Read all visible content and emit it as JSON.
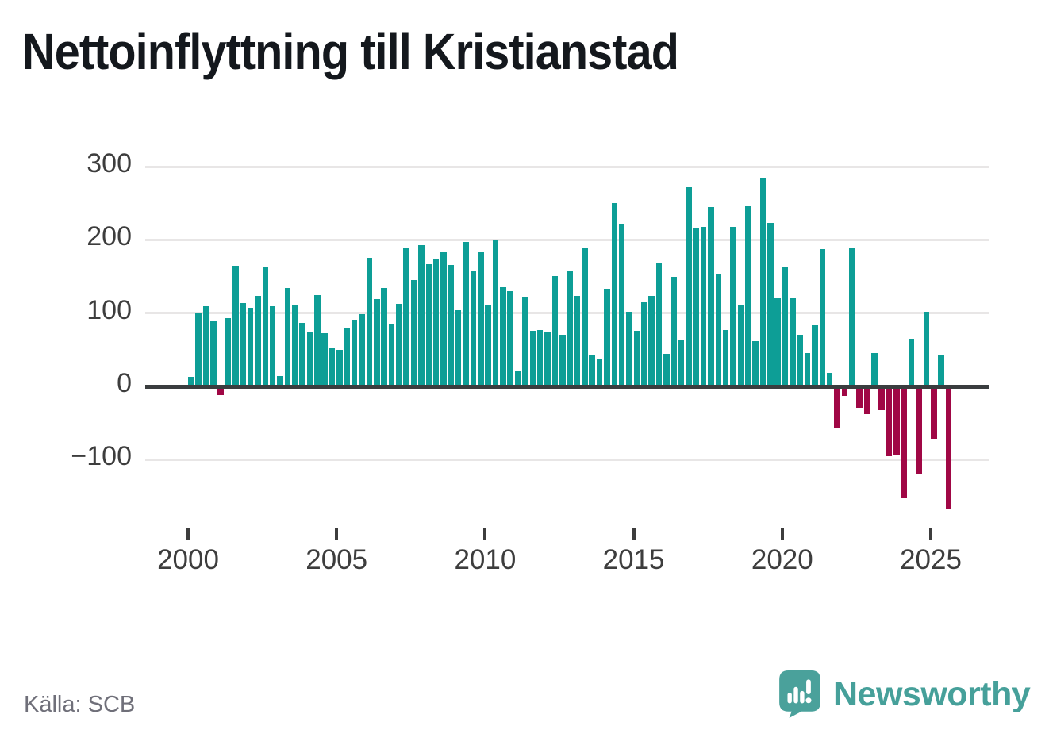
{
  "title": "Nettoinflyttning till Kristianstad",
  "source": {
    "text": "Källa: SCB"
  },
  "branding": {
    "logo_text": "Newsworthy",
    "logo_icon": "bar-chart-speech-bubble-icon",
    "logo_color": "#46a09a"
  },
  "colors": {
    "positive_bar": "#0d9e96",
    "negative_bar": "#a00745",
    "gridline": "#e8e6e6",
    "axis_line": "#3a3d3f",
    "axis_label": "#3d3d3d",
    "title_text": "#14181d",
    "source_text": "#6f6f79"
  },
  "chart_data": {
    "type": "bar",
    "title": "Nettoinflyttning till Kristianstad",
    "x_start": "2000-Q1",
    "x_end": "2025-Q3",
    "frequency": "quarterly",
    "x_tick_years": [
      2000,
      2005,
      2010,
      2015,
      2020,
      2025
    ],
    "y_ticks": [
      300,
      200,
      100,
      0,
      -100
    ],
    "y_tick_labels": [
      "300",
      "200",
      "100",
      "0",
      "−100"
    ],
    "ylim": [
      -200,
      320
    ],
    "grid": "horizontal",
    "legend": "none",
    "xlabel": "",
    "ylabel": "",
    "values": [
      13,
      100,
      109,
      89,
      -12,
      93,
      165,
      114,
      107,
      123,
      163,
      109,
      14,
      134,
      112,
      87,
      75,
      125,
      73,
      52,
      50,
      79,
      91,
      99,
      175,
      119,
      134,
      85,
      113,
      190,
      145,
      193,
      167,
      173,
      184,
      166,
      104,
      197,
      158,
      183,
      112,
      200,
      135,
      130,
      21,
      122,
      76,
      77,
      75,
      151,
      70,
      158,
      123,
      189,
      42,
      38,
      133,
      250,
      222,
      102,
      76,
      115,
      123,
      169,
      44,
      150,
      63,
      272,
      216,
      218,
      245,
      154,
      77,
      218,
      112,
      246,
      62,
      285,
      223,
      121,
      164,
      121,
      70,
      45,
      83,
      187,
      18,
      -57,
      -13,
      190,
      -29,
      -38,
      46,
      -33,
      -95,
      -94,
      -153,
      65,
      -120,
      102,
      -71,
      43,
      -168
    ]
  }
}
